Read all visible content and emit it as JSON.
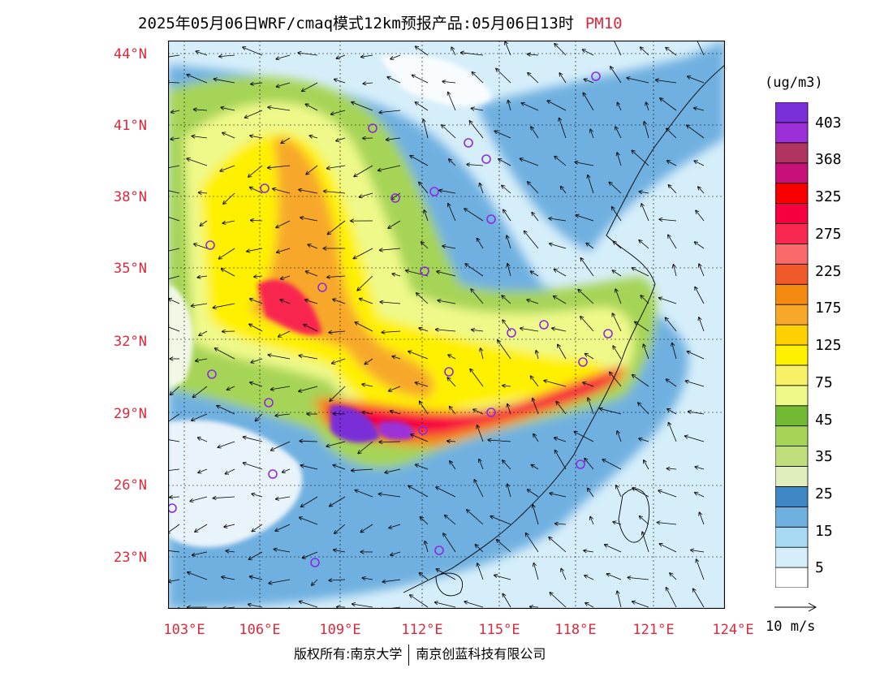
{
  "title": {
    "main": "2025年05月06日WRF/cmaq模式12km预报产品:05月06日13时",
    "species": "PM10"
  },
  "colors": {
    "label_red": "#e0283a",
    "marker_purple": "#8a2be2",
    "ocean_light": "#d6eefa"
  },
  "lat_labels": [
    "44°N",
    "41°N",
    "38°N",
    "35°N",
    "32°N",
    "29°N",
    "26°N",
    "23°N"
  ],
  "lon_labels": [
    "103°E",
    "106°E",
    "109°E",
    "112°E",
    "115°E",
    "118°E",
    "121°E",
    "124°E"
  ],
  "legend": {
    "units": "(ug/m3)",
    "colors": [
      "#ffffff",
      "#d6eefa",
      "#a8d9f2",
      "#6fb0e0",
      "#3f86c4",
      "#dfeebc",
      "#c0de7c",
      "#a6d456",
      "#74b934",
      "#eef98a",
      "#f8f065",
      "#fff000",
      "#ffd000",
      "#f7a82a",
      "#f58a10",
      "#f05a2a",
      "#fa6a6a",
      "#f82850",
      "#f80040",
      "#f80000",
      "#c8107a",
      "#b03460",
      "#9b30d8",
      "#7a2fd8"
    ],
    "labels": [
      "5",
      "15",
      "25",
      "35",
      "45",
      "75",
      "125",
      "175",
      "225",
      "275",
      "325",
      "368",
      "403"
    ]
  },
  "wind_key": {
    "label": "10 m/s"
  },
  "copyright": {
    "left": "版权所有:南京大学",
    "right": "南京创蓝科技有限公司"
  }
}
